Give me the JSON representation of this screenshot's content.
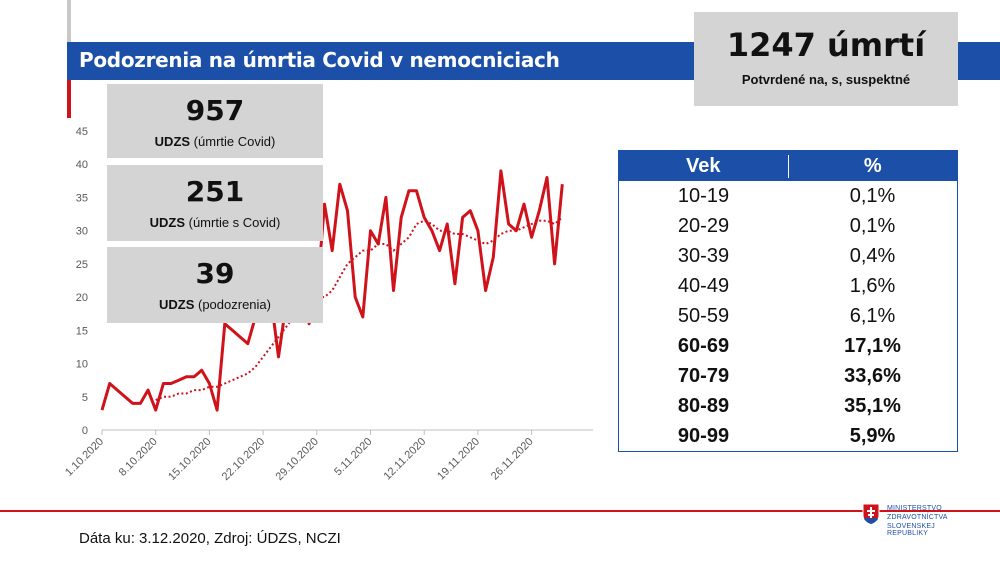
{
  "title": "Podozrenia na úmrtia Covid v nemocniciach",
  "total": {
    "number": "1247 úmrtí",
    "label": "Potvrdené na, s, suspektné"
  },
  "stats": [
    {
      "number": "957",
      "label_bold": "UDZS",
      "label_rest": " (úmrtie Covid)"
    },
    {
      "number": "251",
      "label_bold": "UDZS",
      "label_rest": " (úmrtie s Covid)"
    },
    {
      "number": "39",
      "label_bold": "UDZS",
      "label_rest": " (podozrenia)"
    }
  ],
  "age_table": {
    "headers": [
      "Vek",
      "%"
    ],
    "rows": [
      {
        "age": "10-19",
        "pct": "0,1%",
        "bold": false
      },
      {
        "age": "20-29",
        "pct": "0,1%",
        "bold": false
      },
      {
        "age": "30-39",
        "pct": "0,4%",
        "bold": false
      },
      {
        "age": "40-49",
        "pct": "1,6%",
        "bold": false
      },
      {
        "age": "50-59",
        "pct": "6,1%",
        "bold": false
      },
      {
        "age": "60-69",
        "pct": "17,1%",
        "bold": true
      },
      {
        "age": "70-79",
        "pct": "33,6%",
        "bold": true
      },
      {
        "age": "80-89",
        "pct": "35,1%",
        "bold": true
      },
      {
        "age": "90-99",
        "pct": "5,9%",
        "bold": true
      }
    ]
  },
  "footer": "Dáta ku: 3.12.2020, Zdroj: ÚDZS, NCZI",
  "logo_lines": [
    "MINISTERSTVO",
    "ZDRAVOTNÍCTVA",
    "SLOVENSKEJ REPUBLIKY"
  ],
  "colors": {
    "accent_blue": "#1b4fa8",
    "accent_red": "#d0121b",
    "box_gray": "#d4d4d4"
  },
  "chart_data": {
    "type": "line",
    "x_tick_labels": [
      "1.10.2020",
      "8.10.2020",
      "15.10.2020",
      "22.10.2020",
      "29.10.2020",
      "5.11.2020",
      "12.11.2020",
      "19.11.2020",
      "26.11.2020"
    ],
    "x_days": 64,
    "ylim": [
      0,
      45
    ],
    "y_ticks": [
      0,
      5,
      10,
      15,
      20,
      25,
      30,
      35,
      40,
      45
    ],
    "series": [
      {
        "style": "solid",
        "values": [
          3,
          7,
          6,
          5,
          4,
          4,
          6,
          3,
          7,
          7,
          7.5,
          8,
          8,
          9,
          7,
          3,
          16,
          15,
          14,
          13,
          17,
          20,
          20,
          11,
          19,
          19,
          26,
          16,
          20,
          34,
          27,
          37,
          33,
          20,
          17,
          30,
          28,
          35,
          21,
          32,
          36,
          36,
          32,
          30,
          27,
          31,
          22,
          32,
          33,
          30,
          21,
          26,
          39,
          31,
          30,
          34,
          29,
          33,
          38,
          25,
          37
        ]
      },
      {
        "style": "dotted",
        "values": [
          null,
          null,
          null,
          null,
          null,
          null,
          null,
          4.5,
          5,
          5,
          5.5,
          5.5,
          6,
          6,
          6.5,
          6.5,
          7,
          7.5,
          8,
          8.5,
          9.5,
          11,
          12.5,
          14,
          15.5,
          17,
          18.5,
          19.5,
          20,
          20,
          21,
          23,
          25,
          26,
          27,
          27,
          28,
          28,
          27,
          28,
          29,
          31,
          31.5,
          31,
          30,
          30,
          29.5,
          29.5,
          29,
          28.5,
          28,
          28.5,
          29.5,
          30,
          30,
          30.5,
          31,
          31.5,
          31.5,
          31,
          32
        ]
      }
    ],
    "grid": false,
    "legend": "none"
  }
}
